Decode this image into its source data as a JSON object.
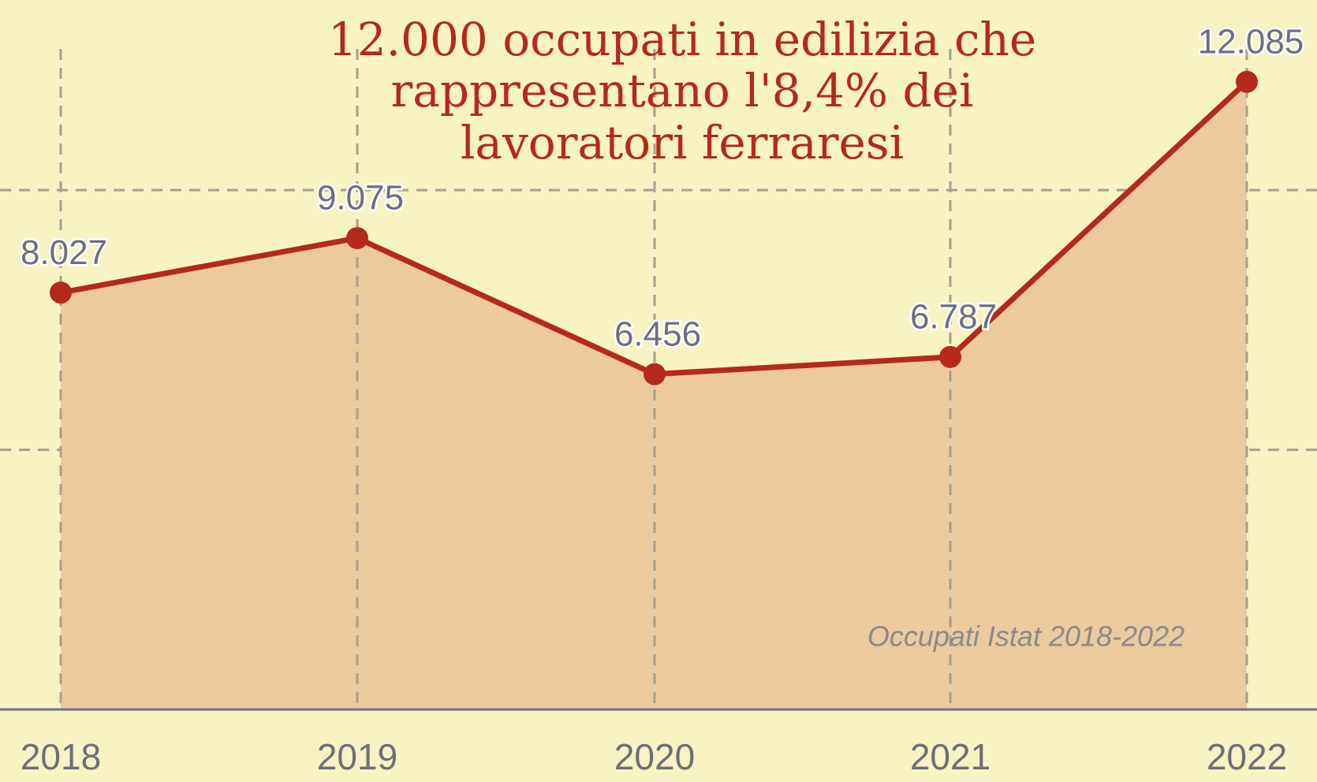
{
  "chart_data": {
    "type": "area",
    "title": [
      "12.000 occupati in edilizia che",
      "rappresentano l'8,4% dei",
      "lavoratori ferraresi"
    ],
    "annotation": "Occupati Istat 2018-2022",
    "categories": [
      "2018",
      "2019",
      "2020",
      "2021",
      "2022"
    ],
    "series": [
      {
        "name": "Occupati",
        "color": "#b5291d",
        "fill": "#ecca9e",
        "values": [
          8027,
          9075,
          6456,
          6787,
          12085
        ],
        "value_labels": [
          "8.027",
          "9.075",
          "6.456",
          "6.787",
          "12.085"
        ]
      }
    ],
    "ylim": [
      0,
      13660
    ],
    "yticks": [
      5000,
      10000
    ],
    "grid": true
  }
}
